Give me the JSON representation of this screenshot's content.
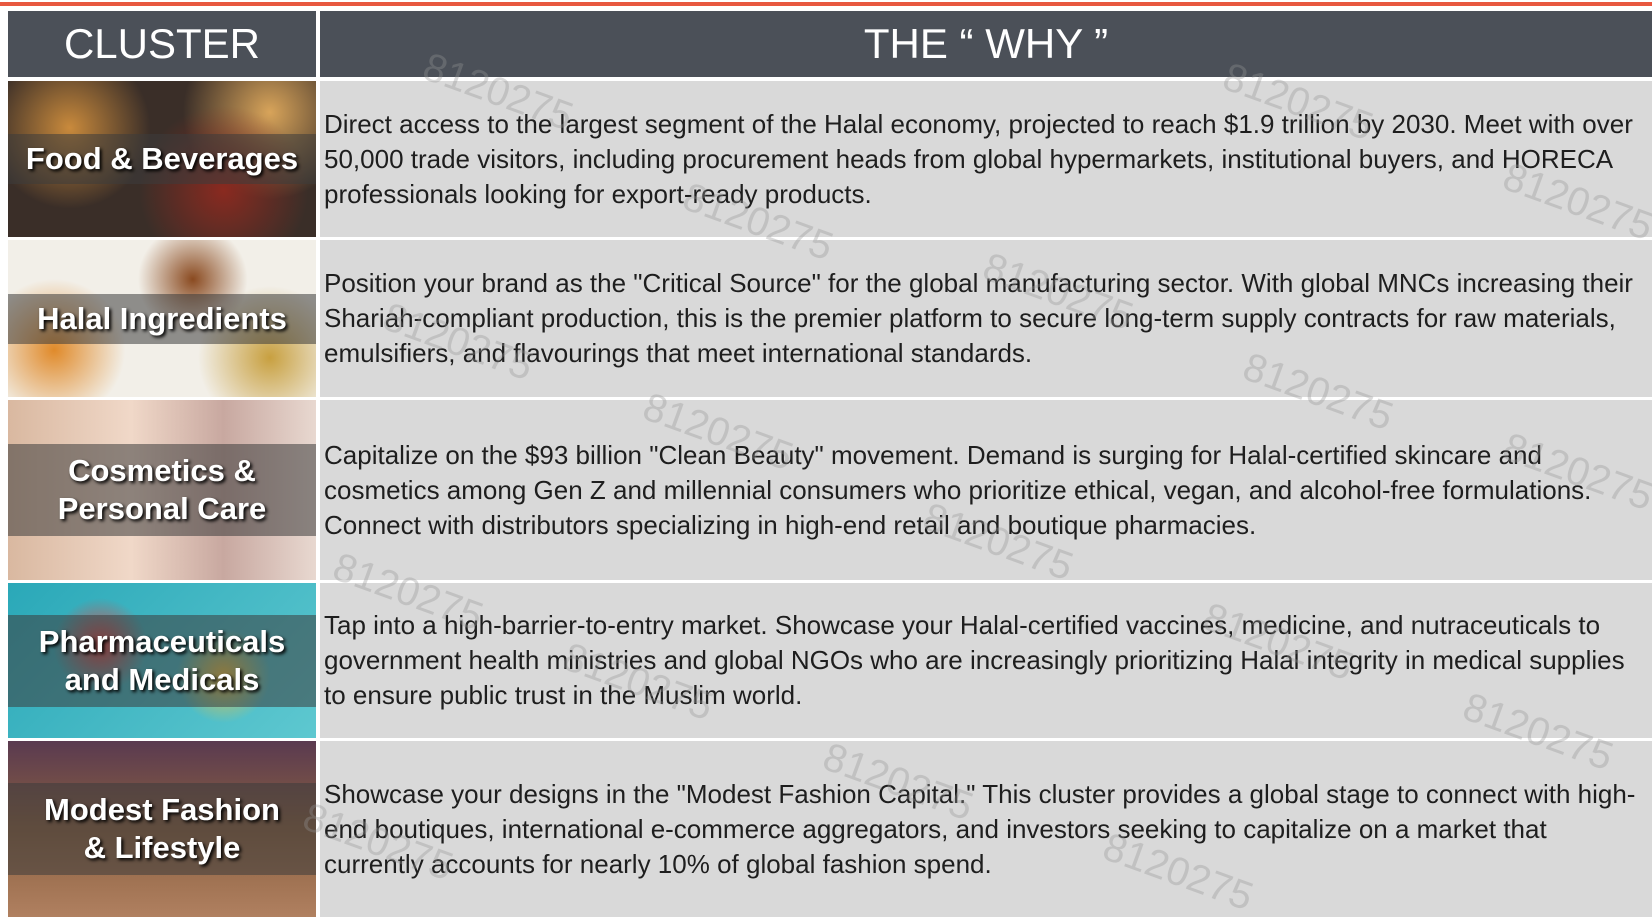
{
  "header": {
    "cluster": "CLUSTER",
    "why": "THE “ WHY ”"
  },
  "watermark": "8120275",
  "table": {
    "rows": [
      {
        "cluster": [
          "Food & Beverages"
        ],
        "why": "Direct access to the largest segment of the Halal economy, projected to reach $1.9 trillion by 2030. Meet with over 50,000 trade visitors, including procurement heads from global hypermarkets, institutional buyers, and HORECA professionals looking for export-ready products."
      },
      {
        "cluster": [
          "Halal Ingredients"
        ],
        "why": "Position your brand as the \"Critical Source\" for the global manufacturing sector. With global MNCs increasing their Shariah-compliant production, this is the premier platform to secure long-term supply contracts for raw materials, emulsifiers, and flavourings that meet international standards."
      },
      {
        "cluster": [
          "Cosmetics &",
          "Personal Care"
        ],
        "why": "Capitalize on the $93 billion \"Clean Beauty\" movement. Demand is surging for Halal-certified skincare and cosmetics among Gen Z and millennial consumers who prioritize ethical, vegan, and alcohol-free formulations. Connect with distributors specializing in high-end retail and boutique pharmacies."
      },
      {
        "cluster": [
          "Pharmaceuticals",
          "and Medicals"
        ],
        "why": "Tap into a high-barrier-to-entry market. Showcase your Halal-certified vaccines, medicine, and nutraceuticals to government health ministries and global NGOs who are increasingly prioritizing Halal integrity in medical supplies to ensure public trust in the Muslim world."
      },
      {
        "cluster": [
          "Modest Fashion",
          "& Lifestyle"
        ],
        "why": "Showcase your designs in the \"Modest Fashion Capital.\" This cluster provides a global stage to connect with high-end boutiques, international e-commerce aggregators, and investors seeking to capitalize on a market that currently accounts for nearly 10% of global fashion spend."
      }
    ]
  }
}
